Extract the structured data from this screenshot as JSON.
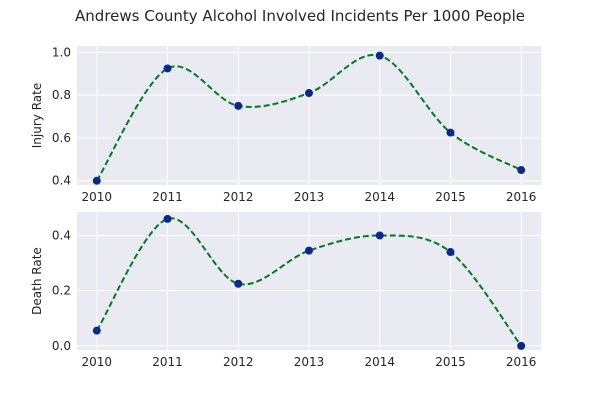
{
  "chart_data": {
    "type": "line",
    "title": "Andrews County Alcohol Involved Incidents Per 1000 People",
    "colors": {
      "curve": "#007a1f",
      "marker": "#0a2a8a",
      "background": "#eaeaf2"
    },
    "grid": true,
    "subplots": [
      {
        "ylabel": "Injury Rate",
        "x": [
          2010,
          2011,
          2012,
          2013,
          2014,
          2015,
          2016
        ],
        "y": [
          0.4,
          0.925,
          0.75,
          0.81,
          0.985,
          0.625,
          0.45
        ],
        "ylim": [
          0.38,
          1.03
        ],
        "yticks": [
          0.4,
          0.6,
          0.8,
          1.0
        ],
        "ytick_labels": [
          "0.4",
          "0.6",
          "0.8",
          "1.0"
        ],
        "xtick_labels": [
          "2010",
          "2011",
          "2012",
          "2013",
          "2014",
          "2015",
          "2016"
        ]
      },
      {
        "ylabel": "Death Rate",
        "x": [
          2010,
          2011,
          2012,
          2013,
          2014,
          2015,
          2016
        ],
        "y": [
          0.055,
          0.46,
          0.225,
          0.345,
          0.4,
          0.34,
          0.0
        ],
        "ylim": [
          -0.015,
          0.485
        ],
        "yticks": [
          0.0,
          0.2,
          0.4
        ],
        "ytick_labels": [
          "0.0",
          "0.2",
          "0.4"
        ],
        "xtick_labels": [
          "2010",
          "2011",
          "2012",
          "2013",
          "2014",
          "2015",
          "2016"
        ]
      }
    ]
  }
}
